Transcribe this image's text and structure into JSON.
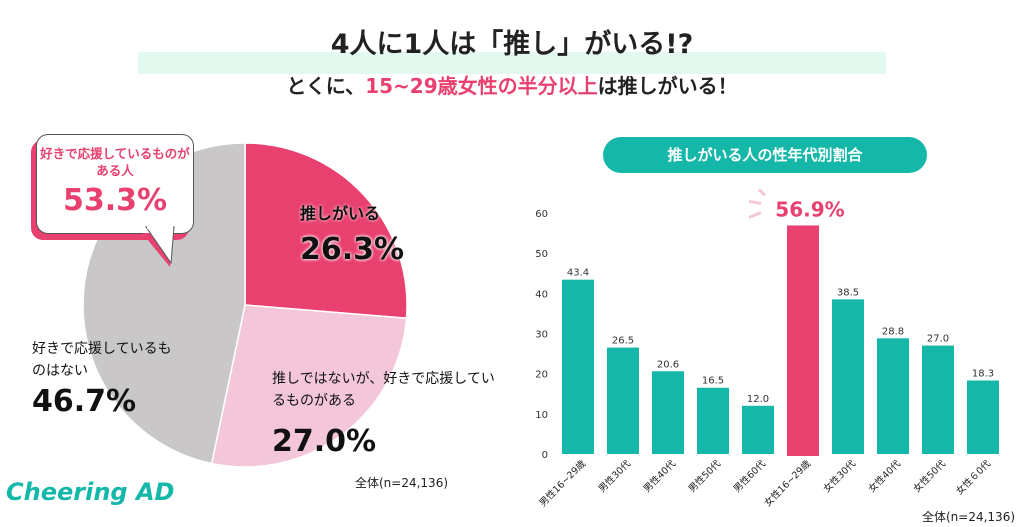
{
  "header": {
    "title": "4人に1人は「推し」がいる!?",
    "subtitle_prefix": "とくに、",
    "subtitle_highlight": "15~29歳女性の半分以上",
    "subtitle_suffix": "は推しがいる！"
  },
  "brand": {
    "logo": "Cheering AD"
  },
  "colors": {
    "accent": "#e8416f",
    "light_pink": "#f4c6da",
    "gray": "#c9c7c8",
    "teal": "#15b8a8"
  },
  "chart_data": [
    {
      "type": "pie",
      "start": "12 o'clock clockwise",
      "slices": [
        {
          "label": "推しがいる",
          "value": 26.3,
          "display": "26.3%",
          "color": "#e8416f"
        },
        {
          "label": "推しではないが、好きで応援しているものがある",
          "value": 27.0,
          "display": "27.0%",
          "color": "#f4c6da"
        },
        {
          "label": "好きで応援しているものはない",
          "value": 46.7,
          "display": "46.7%",
          "color": "#c9c7c8"
        }
      ],
      "callout": {
        "label": "好きで応援しているものがある人",
        "value": "53.3%"
      },
      "note": "全体(n=24,136)"
    },
    {
      "type": "bar",
      "title": "推しがいる人の性年代別割合",
      "categories": [
        "男性16~29歳",
        "男性30代",
        "男性40代",
        "男性50代",
        "男性60代",
        "女性16~29歳",
        "女性30代",
        "女性40代",
        "女性50代",
        "女性６0代"
      ],
      "values": [
        43.4,
        26.5,
        20.6,
        16.5,
        12.0,
        56.9,
        38.5,
        28.8,
        27.0,
        18.3
      ],
      "value_labels": [
        "43.4",
        "26.5",
        "20.6",
        "16.5",
        "12.0",
        "56.9%",
        "38.5",
        "28.8",
        "27.0",
        "18.3"
      ],
      "highlight_index": 5,
      "yticks": [
        0,
        10,
        20,
        30,
        40,
        50,
        60
      ],
      "ylim": [
        0,
        60
      ],
      "note": "全体(n=24,136)"
    }
  ]
}
